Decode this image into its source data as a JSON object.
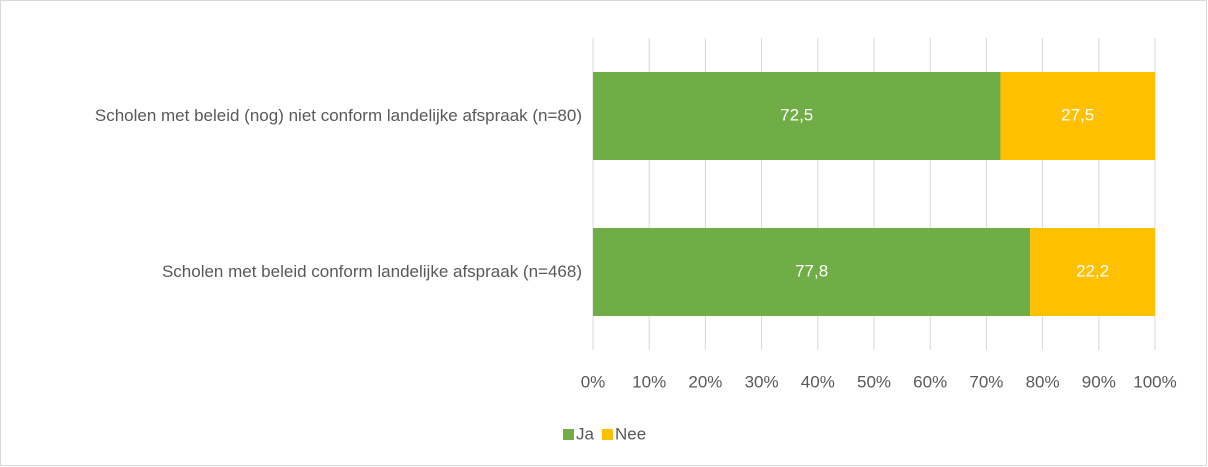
{
  "chart_data": {
    "type": "stacked-bar-horizontal",
    "categories": [
      "Scholen met beleid (nog) niet conform landelijke afspraak (n=80)",
      "Scholen met beleid conform landelijke afspraak (n=468)"
    ],
    "series": [
      {
        "name": "Ja",
        "color": "#70ad47",
        "values": [
          72.5,
          77.8
        ],
        "value_labels": [
          "72,5",
          "77,8"
        ]
      },
      {
        "name": "Nee",
        "color": "#ffc000",
        "values": [
          27.5,
          22.2
        ],
        "value_labels": [
          "27,5",
          "22,2"
        ]
      }
    ],
    "xlim": [
      0,
      100
    ],
    "xticks": [
      {
        "value": 0,
        "label": "0%"
      },
      {
        "value": 10,
        "label": "10%"
      },
      {
        "value": 20,
        "label": "20%"
      },
      {
        "value": 30,
        "label": "30%"
      },
      {
        "value": 40,
        "label": "40%"
      },
      {
        "value": 50,
        "label": "50%"
      },
      {
        "value": 60,
        "label": "60%"
      },
      {
        "value": 70,
        "label": "70%"
      },
      {
        "value": 80,
        "label": "80%"
      },
      {
        "value": 90,
        "label": "90%"
      },
      {
        "value": 100,
        "label": "100%"
      }
    ],
    "grid": true,
    "legend": "bottom"
  }
}
